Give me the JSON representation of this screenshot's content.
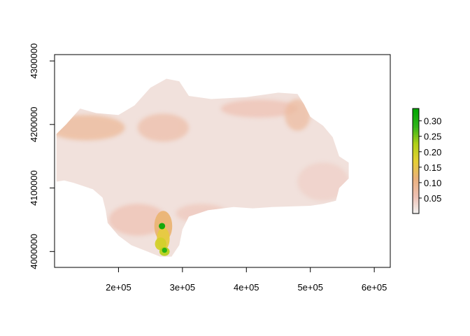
{
  "chart_data": {
    "type": "heatmap",
    "title": "",
    "xlabel": "",
    "ylabel": "",
    "xlim": [
      100000,
      625000
    ],
    "ylim": [
      3975000,
      4310000
    ],
    "x_ticks": [
      {
        "value": 200000,
        "label": "2e+05"
      },
      {
        "value": 300000,
        "label": "3e+05"
      },
      {
        "value": 400000,
        "label": "4e+05"
      },
      {
        "value": 500000,
        "label": "5e+05"
      },
      {
        "value": 600000,
        "label": "6e+05"
      }
    ],
    "y_ticks": [
      {
        "value": 4000000,
        "label": "4000000"
      },
      {
        "value": 4100000,
        "label": "4100000"
      },
      {
        "value": 4200000,
        "label": "4200000"
      },
      {
        "value": 4300000,
        "label": "4300000"
      }
    ],
    "legend": {
      "placement": "right",
      "range": [
        0,
        0.34
      ],
      "ticks": [
        {
          "value": 0.05,
          "label": "0.05"
        },
        {
          "value": 0.1,
          "label": "0.10"
        },
        {
          "value": 0.15,
          "label": "0.15"
        },
        {
          "value": 0.2,
          "label": "0.20"
        },
        {
          "value": 0.25,
          "label": "0.25"
        },
        {
          "value": 0.3,
          "label": "0.30"
        }
      ],
      "colors": [
        "#f2f2f2",
        "#eec1b4",
        "#eab07d",
        "#e6d034",
        "#b0d018",
        "#2fb41a",
        "#00a600"
      ]
    },
    "region": {
      "outline": [
        [
          103000,
          4110000
        ],
        [
          103000,
          4185000
        ],
        [
          118000,
          4200000
        ],
        [
          140000,
          4225000
        ],
        [
          165000,
          4218000
        ],
        [
          200000,
          4215000
        ],
        [
          225000,
          4230000
        ],
        [
          250000,
          4258000
        ],
        [
          275000,
          4272000
        ],
        [
          295000,
          4268000
        ],
        [
          310000,
          4245000
        ],
        [
          345000,
          4240000
        ],
        [
          400000,
          4243000
        ],
        [
          450000,
          4250000
        ],
        [
          480000,
          4248000
        ],
        [
          490000,
          4232000
        ],
        [
          500000,
          4212000
        ],
        [
          520000,
          4198000
        ],
        [
          535000,
          4180000
        ],
        [
          545000,
          4150000
        ],
        [
          560000,
          4140000
        ],
        [
          560000,
          4115000
        ],
        [
          545000,
          4100000
        ],
        [
          540000,
          4080000
        ],
        [
          520000,
          4075000
        ],
        [
          500000,
          4072000
        ],
        [
          440000,
          4070000
        ],
        [
          410000,
          4068000
        ],
        [
          380000,
          4070000
        ],
        [
          340000,
          4065000
        ],
        [
          310000,
          4055000
        ],
        [
          300000,
          4035000
        ],
        [
          295000,
          4010000
        ],
        [
          283000,
          3992000
        ],
        [
          265000,
          3992000
        ],
        [
          245000,
          4000000
        ],
        [
          220000,
          4010000
        ],
        [
          200000,
          4025000
        ],
        [
          183000,
          4045000
        ],
        [
          180000,
          4065000
        ],
        [
          175000,
          4085000
        ],
        [
          160000,
          4098000
        ],
        [
          130000,
          4108000
        ],
        [
          115000,
          4112000
        ]
      ],
      "base_value": 0.02,
      "patches": [
        {
          "x": 150000,
          "y": 4195000,
          "rx": 60000,
          "ry": 20000,
          "value": 0.09
        },
        {
          "x": 270000,
          "y": 4195000,
          "rx": 40000,
          "ry": 22000,
          "value": 0.07
        },
        {
          "x": 420000,
          "y": 4225000,
          "rx": 60000,
          "ry": 14000,
          "value": 0.06
        },
        {
          "x": 480000,
          "y": 4215000,
          "rx": 20000,
          "ry": 25000,
          "value": 0.08
        },
        {
          "x": 230000,
          "y": 4050000,
          "rx": 45000,
          "ry": 25000,
          "value": 0.06
        },
        {
          "x": 330000,
          "y": 4060000,
          "rx": 40000,
          "ry": 15000,
          "value": 0.05
        },
        {
          "x": 520000,
          "y": 4110000,
          "rx": 40000,
          "ry": 30000,
          "value": 0.04
        },
        {
          "x": 270000,
          "y": 4040000,
          "rx": 14000,
          "ry": 24000,
          "value": 0.12
        },
        {
          "x": 270000,
          "y": 4020000,
          "rx": 10000,
          "ry": 18000,
          "value": 0.16
        },
        {
          "x": 266000,
          "y": 4012000,
          "rx": 9000,
          "ry": 10000,
          "value": 0.19
        },
        {
          "x": 272000,
          "y": 4000000,
          "rx": 8000,
          "ry": 7000,
          "value": 0.22
        },
        {
          "x": 268000,
          "y": 4040000,
          "rx": 5000,
          "ry": 5000,
          "value": 0.33
        },
        {
          "x": 272000,
          "y": 4002000,
          "rx": 4000,
          "ry": 4000,
          "value": 0.3
        }
      ]
    }
  }
}
